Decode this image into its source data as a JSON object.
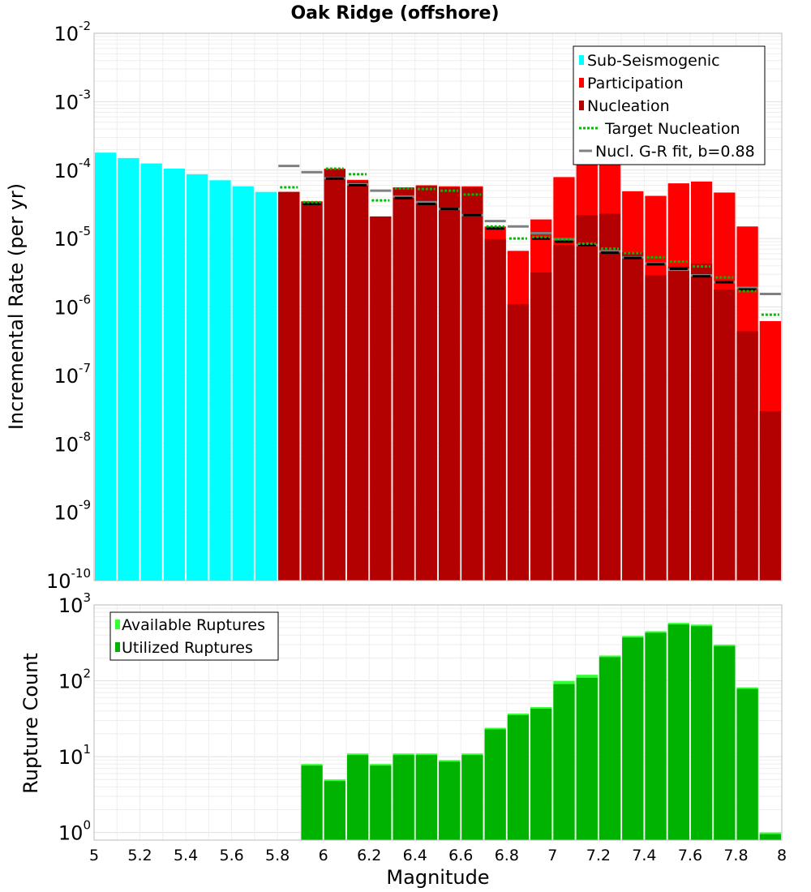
{
  "title": "Oak Ridge (offshore)",
  "colors": {
    "sub_seismogenic": "#00ffff",
    "participation": "#ff0000",
    "nucleation": "#b30000",
    "target_nucleation": "#00bb00",
    "gr_fit": "#808080",
    "available": "#33ff33",
    "utilized": "#00b300"
  },
  "chart_data": [
    {
      "type": "bar",
      "title": "Oak Ridge (offshore)",
      "xlabel": "",
      "ylabel": "Incremental Rate (per yr)",
      "yscale": "log",
      "ylim_exp": [
        -10,
        -2
      ],
      "xlim": [
        5,
        8
      ],
      "bin_width": 0.1,
      "y_tick_exponents": [
        -2,
        -3,
        -4,
        -5,
        -6,
        -7,
        -8,
        -9,
        -10
      ],
      "legend": [
        "Sub-Seismogenic",
        "Participation",
        "Nucleation",
        "Target Nucleation",
        "Nucl. G-R fit, b=0.88"
      ],
      "legend_position": "top-right",
      "sub_seismogenic": {
        "name": "Sub-Seismogenic",
        "x": [
          5.05,
          5.15,
          5.25,
          5.35,
          5.45,
          5.55,
          5.65,
          5.75
        ],
        "values": [
          0.00018,
          0.00015,
          0.000125,
          0.000105,
          8.7e-05,
          7.1e-05,
          5.8e-05,
          4.8e-05
        ]
      },
      "participation": {
        "name": "Participation",
        "x": [
          5.85,
          5.95,
          6.05,
          6.15,
          6.25,
          6.35,
          6.45,
          6.55,
          6.65,
          6.75,
          6.85,
          6.95,
          7.05,
          7.15,
          7.25,
          7.35,
          7.45,
          7.55,
          7.65,
          7.75,
          7.85,
          7.95
        ],
        "values": [
          4.8e-05,
          3.5e-05,
          0.000105,
          7.2e-05,
          2.1e-05,
          5.6e-05,
          6e-05,
          5.8e-05,
          5.8e-05,
          1.5e-05,
          6.6e-06,
          1.9e-05,
          7.9e-05,
          0.00017,
          0.00015,
          4.9e-05,
          4.2e-05,
          6.4e-05,
          6.8e-05,
          4.7e-05,
          1.5e-05,
          6.2e-07
        ]
      },
      "nucleation": {
        "name": "Nucleation",
        "x": [
          5.85,
          5.95,
          6.05,
          6.15,
          6.25,
          6.35,
          6.45,
          6.55,
          6.65,
          6.75,
          6.85,
          6.95,
          7.05,
          7.15,
          7.25,
          7.35,
          7.45,
          7.55,
          7.65,
          7.75,
          7.85,
          7.95
        ],
        "values": [
          4.8e-05,
          3.4e-05,
          0.000102,
          6.8e-05,
          2.1e-05,
          5.4e-05,
          5.8e-05,
          5.6e-05,
          5.6e-05,
          9.8e-06,
          1.1e-06,
          3.2e-06,
          8e-06,
          2.2e-05,
          2.3e-05,
          6.3e-06,
          2.9e-06,
          3.9e-06,
          4.3e-06,
          1.8e-06,
          4.4e-07,
          3e-08
        ]
      },
      "nucleation_markers": {
        "x": [
          5.95,
          6.05,
          6.15,
          6.35,
          6.45,
          6.55,
          6.65,
          6.75,
          6.95,
          7.05,
          7.15,
          7.25,
          7.35,
          7.45,
          7.55,
          7.65,
          7.75,
          7.85
        ],
        "values": [
          3.2e-05,
          7.5e-05,
          6e-05,
          3.9e-05,
          3.2e-05,
          2.7e-05,
          2.2e-05,
          1.4e-05,
          1e-05,
          9e-06,
          8e-06,
          6.2e-06,
          5.2e-06,
          4.2e-06,
          3.6e-06,
          2.8e-06,
          2.3e-06,
          1.8e-06
        ]
      },
      "target_nucleation": {
        "name": "Target Nucleation",
        "x": [
          5.85,
          5.95,
          6.05,
          6.15,
          6.25,
          6.35,
          6.45,
          6.55,
          6.65,
          6.75,
          6.85,
          6.95,
          7.05,
          7.15,
          7.25,
          7.35,
          7.45,
          7.55,
          7.65,
          7.75,
          7.85,
          7.95
        ],
        "values": [
          5.6e-05,
          3.4e-05,
          0.000105,
          8.7e-05,
          3.6e-05,
          5.4e-05,
          5.3e-05,
          5e-05,
          4.4e-05,
          1.5e-05,
          1e-05,
          1.05e-05,
          9.7e-06,
          8.4e-06,
          7.1e-06,
          6.1e-06,
          5.3e-06,
          4.6e-06,
          3.9e-06,
          2.7e-06,
          1.7e-06,
          7.7e-07
        ]
      },
      "gr_fit": {
        "name": "Nucl. G-R fit, b=0.88",
        "x": [
          5.85,
          5.95,
          6.05,
          6.15,
          6.25,
          6.35,
          6.45,
          6.55,
          6.65,
          6.75,
          6.85,
          6.95,
          7.05,
          7.15,
          7.25,
          7.35,
          7.45,
          7.55,
          7.65,
          7.75,
          7.85,
          7.95
        ],
        "values": [
          0.000115,
          9.3e-05,
          7.6e-05,
          6.2e-05,
          5e-05,
          4.1e-05,
          3.4e-05,
          2.7e-05,
          2.2e-05,
          1.8e-05,
          1.5e-05,
          1.2e-05,
          9.8e-06,
          8e-06,
          6.5e-06,
          5.3e-06,
          4.3e-06,
          3.5e-06,
          2.9e-06,
          2.3e-06,
          1.9e-06,
          1.55e-06
        ]
      }
    },
    {
      "type": "bar",
      "title": "",
      "xlabel": "Magnitude",
      "ylabel": "Rupture Count",
      "yscale": "log",
      "ylim_exp": [
        -0.1,
        3
      ],
      "xlim": [
        5,
        8
      ],
      "x_ticks": [
        "5",
        "5.2",
        "5.4",
        "5.6",
        "5.8",
        "6",
        "6.2",
        "6.4",
        "6.6",
        "6.8",
        "7",
        "7.2",
        "7.4",
        "7.6",
        "7.8",
        "8"
      ],
      "y_tick_exponents": [
        3,
        2,
        1,
        0
      ],
      "legend": [
        "Available Ruptures",
        "Utilized Ruptures"
      ],
      "legend_position": "top-left",
      "available": {
        "name": "Available Ruptures",
        "x": [
          5.95,
          6.05,
          6.15,
          6.25,
          6.35,
          6.45,
          6.55,
          6.65,
          6.75,
          6.85,
          6.95,
          7.05,
          7.15,
          7.25,
          7.35,
          7.45,
          7.55,
          7.65,
          7.75,
          7.85,
          7.95
        ],
        "values": [
          8,
          5,
          11,
          8,
          11,
          11,
          9,
          11,
          24,
          37,
          45,
          99,
          120,
          215,
          390,
          450,
          580,
          550,
          300,
          82,
          1
        ]
      },
      "utilized": {
        "name": "Utilized Ruptures",
        "x": [
          5.95,
          6.05,
          6.15,
          6.25,
          6.35,
          6.45,
          6.55,
          6.65,
          6.75,
          6.85,
          6.95,
          7.05,
          7.15,
          7.25,
          7.35,
          7.45,
          7.55,
          7.65,
          7.75,
          7.85,
          7.95
        ],
        "values": [
          8,
          5,
          11,
          8,
          11,
          11,
          9,
          11,
          24,
          37,
          45,
          95,
          115,
          215,
          390,
          450,
          580,
          550,
          300,
          82,
          1
        ]
      }
    }
  ]
}
